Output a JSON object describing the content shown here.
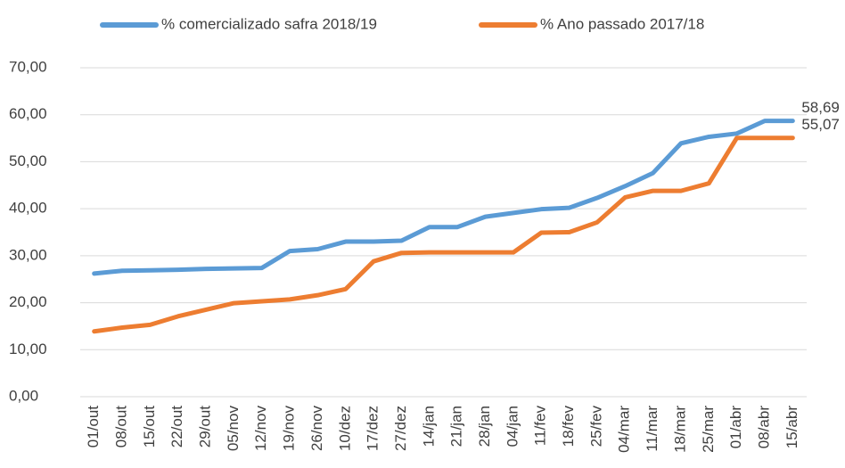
{
  "chart_data": {
    "type": "line",
    "categories": [
      "01/out",
      "08/out",
      "15/out",
      "22/out",
      "29/out",
      "05/nov",
      "12/nov",
      "19/nov",
      "26/nov",
      "10/dez",
      "17/dez",
      "27/dez",
      "14/jan",
      "21/jan",
      "28/jan",
      "04/jan",
      "11/fev",
      "18/fev",
      "25/fev",
      "04/mar",
      "11/mar",
      "18/mar",
      "25/mar",
      "01/abr",
      "08/abr",
      "15/abr"
    ],
    "series": [
      {
        "name": "% comercializado safra 2018/19",
        "color": "#5b9bd5",
        "values": [
          26.2,
          26.8,
          26.9,
          27.0,
          27.2,
          27.3,
          27.4,
          31.0,
          31.4,
          33.0,
          33.0,
          33.2,
          36.1,
          36.1,
          38.3,
          39.1,
          39.9,
          40.2,
          42.3,
          44.8,
          47.6,
          53.9,
          55.3,
          56.0,
          58.69,
          58.69
        ],
        "value_labels": [
          null,
          null,
          null,
          null,
          null,
          null,
          null,
          null,
          null,
          null,
          null,
          null,
          null,
          null,
          null,
          null,
          null,
          null,
          null,
          null,
          null,
          null,
          null,
          null,
          null,
          "58,69"
        ]
      },
      {
        "name": "% Ano passado 2017/18",
        "color": "#ed7d31",
        "values": [
          13.9,
          14.7,
          15.3,
          17.1,
          18.5,
          19.9,
          20.3,
          20.7,
          21.6,
          22.9,
          28.8,
          30.6,
          30.7,
          30.7,
          30.7,
          30.7,
          34.9,
          35.0,
          37.1,
          42.4,
          43.8,
          43.8,
          45.4,
          55.07,
          55.07,
          55.07
        ],
        "value_labels": [
          null,
          null,
          null,
          null,
          null,
          null,
          null,
          null,
          null,
          null,
          null,
          null,
          null,
          null,
          null,
          null,
          null,
          null,
          null,
          null,
          null,
          null,
          null,
          null,
          null,
          "55,07"
        ]
      }
    ],
    "ylim": [
      0,
      70
    ],
    "yticks": [
      {
        "value": 0,
        "label": "0,00"
      },
      {
        "value": 10,
        "label": "10,00"
      },
      {
        "value": 20,
        "label": "20,00"
      },
      {
        "value": 30,
        "label": "30,00"
      },
      {
        "value": 40,
        "label": "40,00"
      },
      {
        "value": 50,
        "label": "50,00"
      },
      {
        "value": 60,
        "label": "60,00"
      },
      {
        "value": 70,
        "label": "70,00"
      }
    ],
    "grid": true,
    "legend": "top"
  }
}
